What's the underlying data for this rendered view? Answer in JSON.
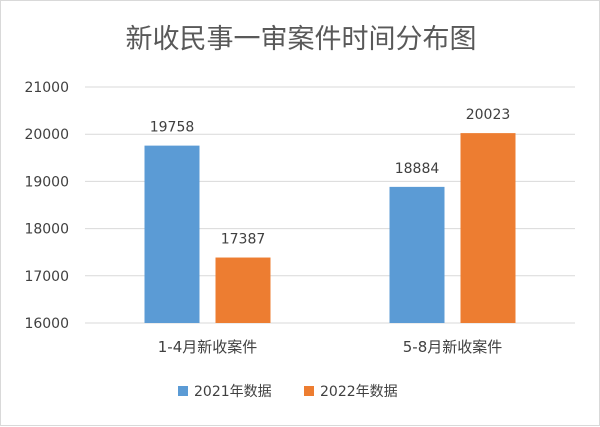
{
  "chart_data": {
    "type": "bar",
    "title": "新收民事一审案件时间分布图",
    "categories": [
      "1-4月新收案件",
      "5-8月新收案件"
    ],
    "series": [
      {
        "name": "2021年数据",
        "values": [
          19758,
          18884
        ],
        "color": "#5b9bd5"
      },
      {
        "name": "2022年数据",
        "values": [
          17387,
          20023
        ],
        "color": "#ed7d31"
      }
    ],
    "ylim": [
      16000,
      21000
    ],
    "yticks": [
      "16000",
      "17000",
      "18000",
      "19000",
      "20000",
      "21000"
    ],
    "grid": true,
    "legend_position": "bottom"
  }
}
